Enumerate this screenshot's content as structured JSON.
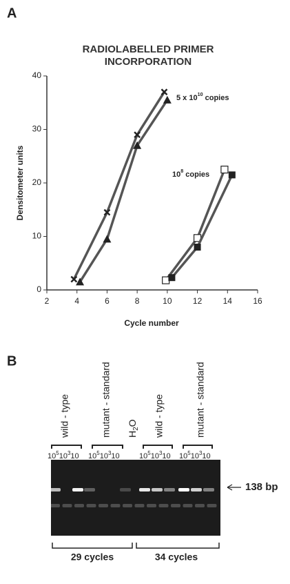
{
  "panel_a": {
    "label": "A"
  },
  "chart_data": {
    "type": "line",
    "title": "RADIOLABELLED PRIMER INCORPORATION",
    "x_label": "Cycle number",
    "y_label": "Densitometer units",
    "xlim": [
      2,
      16
    ],
    "xticks": [
      2,
      4,
      6,
      8,
      10,
      12,
      14,
      16
    ],
    "ylim": [
      0,
      40
    ],
    "yticks": [
      0,
      10,
      20,
      30,
      40
    ],
    "series": [
      {
        "marker": "cross",
        "color": "#222222",
        "x": [
          3.8,
          6,
          8,
          9.8
        ],
        "values": [
          2,
          14.5,
          29,
          37
        ]
      },
      {
        "marker": "triangle",
        "color": "#222222",
        "x": [
          4.2,
          6,
          8,
          10
        ],
        "values": [
          1.5,
          9.5,
          27,
          35.5
        ]
      },
      {
        "marker": "open-square",
        "color": "#222222",
        "x": [
          9.9,
          12,
          13.8
        ],
        "values": [
          1.8,
          9.7,
          22.5
        ]
      },
      {
        "marker": "filled-square",
        "color": "#222222",
        "x": [
          10.3,
          12,
          14.3
        ],
        "values": [
          2.3,
          8,
          21.5
        ]
      }
    ],
    "annotations": [
      {
        "base": "5 x 10",
        "exponent": "10",
        "suffix": " copies"
      },
      {
        "base": "10",
        "exponent": "8",
        "suffix": " copies"
      }
    ]
  },
  "panel_b": {
    "label": "B",
    "lanes": [
      "wild - type",
      "mutant - standard",
      "wild - type",
      "mutant - standard"
    ],
    "water": {
      "base": "H",
      "sub": "2",
      "rest": "O"
    },
    "dilutions": [
      {
        "base": "10",
        "exponent": "5"
      },
      {
        "base": "10",
        "exponent": "3"
      },
      {
        "base": "10"
      }
    ],
    "band_label": "138 bp",
    "cycles": [
      "29 cycles",
      "34 cycles"
    ]
  }
}
